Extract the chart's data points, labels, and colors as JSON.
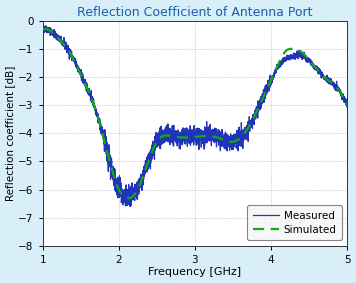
{
  "title": "Reflection Coefficient of Antenna Port",
  "title_color": "#1B5FAA",
  "xlabel": "Frequency [GHz]",
  "ylabel": "Reflection coefficient [dB]",
  "xlim": [
    1,
    5
  ],
  "ylim": [
    -8,
    0
  ],
  "xticks": [
    1,
    2,
    3,
    4,
    5
  ],
  "yticks": [
    0,
    -1,
    -2,
    -3,
    -4,
    -5,
    -6,
    -7,
    -8
  ],
  "measured_color": "#2233BB",
  "simulated_color": "#11AA11",
  "background_color": "#FFFFFF",
  "border_color": "#55BBEE",
  "grid_color": "#888888",
  "figsize": [
    3.56,
    2.83
  ],
  "dpi": 100,
  "sim_key_x": [
    1.0,
    1.1,
    1.2,
    1.35,
    1.5,
    1.7,
    1.9,
    2.0,
    2.1,
    2.2,
    2.35,
    2.5,
    2.7,
    2.9,
    3.1,
    3.3,
    3.5,
    3.7,
    3.9,
    4.0,
    4.1,
    4.2,
    4.3,
    4.4,
    4.5,
    4.6,
    4.7,
    4.8,
    4.9,
    5.0
  ],
  "sim_key_y": [
    -0.3,
    -0.35,
    -0.6,
    -1.1,
    -1.9,
    -3.2,
    -5.2,
    -6.0,
    -6.3,
    -6.2,
    -5.3,
    -4.3,
    -4.1,
    -4.15,
    -4.1,
    -4.15,
    -4.3,
    -3.8,
    -2.7,
    -2.1,
    -1.5,
    -1.05,
    -1.0,
    -1.1,
    -1.4,
    -1.7,
    -2.0,
    -2.2,
    -2.5,
    -3.0
  ]
}
